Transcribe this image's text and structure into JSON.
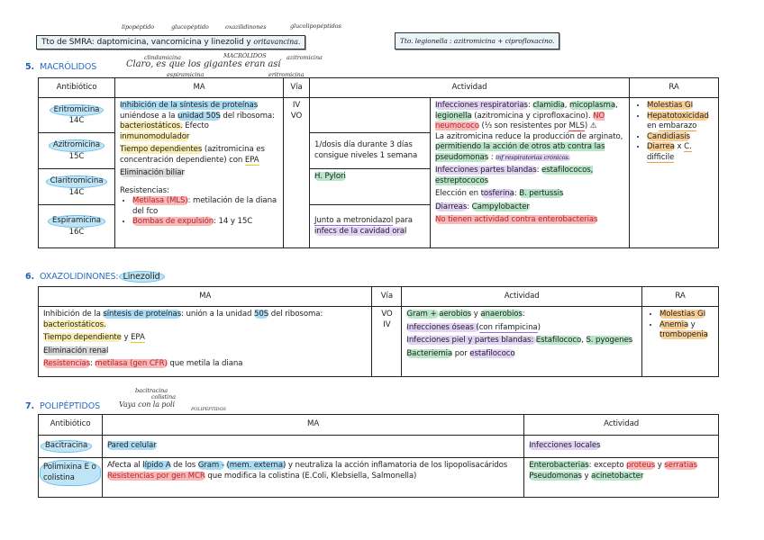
{
  "top": {
    "smra_box": "Tto de SMRA: daptomicina, vancomicina y linezolid y ",
    "smra_hand": "oritavancina.",
    "smra_notes": [
      "lipopéptido",
      "glucopéptido",
      "oxazilidinones",
      "glucolipopéptidos"
    ],
    "legionella_box": "Tto. legionella : azitromicina + ciprofloxacino."
  },
  "macrolidos": {
    "number": "5.",
    "title": "MACRÓLIDOS",
    "mnemonic": "Claro, es que los gigantes eran así",
    "mnemonic_notes": [
      "clindamicina",
      "MACRÓLIDOS",
      "azitromicina",
      "espiramicina",
      "eritromicina"
    ],
    "headers": [
      "Antibiótico",
      "MA",
      "Vía",
      "Actividad",
      "RA"
    ],
    "antibiotics": [
      {
        "name": "Eritromicina",
        "carbons": "14C"
      },
      {
        "name": "Azitromicina",
        "carbons": "15C"
      },
      {
        "name": "Claritromicina",
        "carbons": "14C"
      },
      {
        "name": "Espiramicina",
        "carbons": "16C"
      }
    ],
    "ma": [
      [
        [
          "Inhibición de la síntesis de proteínas",
          "b"
        ],
        [
          " uniéndose a la "
        ],
        [
          "unidad 50S",
          "b"
        ],
        [
          " del ribosoma: "
        ],
        [
          "bacteriostáticos.",
          "y"
        ],
        [
          " Efecto "
        ],
        [
          "inmunomodulador",
          "y"
        ]
      ],
      [
        [
          "Tiempo dependientes",
          "y"
        ],
        [
          " (azitromicina es concentración dependiente) con "
        ],
        [
          "EPA",
          "uy"
        ]
      ],
      [
        [
          "Eliminación biliar",
          "g"
        ]
      ]
    ],
    "resistencias_label": "Resistencias:",
    "resistencias": [
      [
        [
          "Metilasa (MLS)",
          "r"
        ],
        [
          ": metilación de la diana del fco"
        ]
      ],
      [
        [
          "Bombas de expulsión",
          "r"
        ],
        [
          ": 14 y 15C"
        ]
      ]
    ],
    "via": [
      "IV",
      "VO"
    ],
    "notes": [
      [
        [
          "1/dosis día durante 3 días consigue niveles 1 semana"
        ]
      ],
      [
        [
          "H. Pylori",
          "gr"
        ]
      ],
      [
        [
          "Junto a metronidazol",
          "up"
        ],
        [
          " para "
        ],
        [
          "infecs de la cavidad oral",
          "p"
        ]
      ]
    ],
    "actividad": [
      [
        [
          "Infecciones respiratorias",
          "p"
        ],
        [
          ": "
        ],
        [
          "clamidia",
          "gr"
        ],
        [
          ", "
        ],
        [
          "micoplasma",
          "gr"
        ],
        [
          ", "
        ],
        [
          "legionella",
          "gr"
        ],
        [
          " (azitromicina y ciprofloxacino). "
        ],
        [
          "NO neumococo",
          "r"
        ],
        [
          " (⅓ son resistentes por "
        ],
        [
          "MLS",
          "ur"
        ],
        [
          ") ⚠"
        ]
      ],
      [
        [
          "La azitromicina reduce la producción de arginato, "
        ],
        [
          "permitiendo la acción de otros atb contra las pseudomonas",
          "gr"
        ],
        [
          " : "
        ],
        [
          "inf respiratorias crónicos.",
          "p hwi"
        ]
      ],
      [
        [
          "Infecciones partes blandas",
          "p"
        ],
        [
          ": "
        ],
        [
          "estafilococos, estreptococos",
          "gr"
        ]
      ],
      [
        [
          "Elección en "
        ],
        [
          "tosferina",
          "p"
        ],
        [
          ": "
        ],
        [
          "B. pertussis",
          "gr"
        ]
      ],
      [
        [
          "Diarreas",
          "p"
        ],
        [
          ": "
        ],
        [
          "Campylobacter",
          "gr"
        ]
      ],
      [
        [
          "No tienen actividad contra enterobacterias",
          "r"
        ]
      ]
    ],
    "ra": [
      [
        [
          "Molestias GI",
          "o"
        ]
      ],
      [
        [
          "Hepatotoxicidad",
          "o"
        ],
        [
          " en "
        ],
        [
          "embarazo",
          "uo"
        ]
      ],
      [
        [
          "Candidiasis",
          "o"
        ]
      ],
      [
        [
          "Diarrea",
          "o"
        ],
        [
          " x "
        ],
        [
          "C.",
          "uo"
        ],
        [
          " "
        ],
        [
          "difficile",
          "uo"
        ]
      ]
    ]
  },
  "oxazolidinones": {
    "number": "6.",
    "title": "OXAZOLIDINONES:",
    "drug": "Linezolid",
    "headers": [
      "MA",
      "Vía",
      "Actividad",
      "RA"
    ],
    "ma": [
      [
        [
          "Inhibición de la "
        ],
        [
          "síntesis de proteínas",
          "b"
        ],
        [
          ": unión a la unidad "
        ],
        [
          "50S",
          "b"
        ],
        [
          " del ribosoma: "
        ],
        [
          "bacteriostáticos.",
          "y"
        ]
      ],
      [
        [
          "Tiempo dependiente",
          "y"
        ],
        [
          " y "
        ],
        [
          "EPA",
          "uy"
        ]
      ],
      [
        [
          "Eliminación renal",
          "g"
        ]
      ],
      [
        [
          "Resistencias",
          "r"
        ],
        [
          ": "
        ],
        [
          "metilasa (gen CFR)",
          "r"
        ],
        [
          " que metila la diana"
        ]
      ]
    ],
    "via": [
      "VO",
      "IV"
    ],
    "actividad": [
      [
        [
          "Gram + ",
          "gr"
        ],
        [
          "aerobios",
          "gr"
        ],
        [
          " y "
        ],
        [
          "anaerobios",
          "gr"
        ],
        [
          ":"
        ]
      ],
      [
        [
          "Infecciones óseas (",
          "p"
        ],
        [
          "con rifampicina",
          "up"
        ],
        [
          ")"
        ]
      ],
      [
        [
          "Infecciones piel y partes blandas: ",
          "p"
        ],
        [
          "Estafilococo",
          "gr"
        ],
        [
          ", "
        ],
        [
          "S. pyogenes",
          "gr"
        ]
      ],
      [
        [
          "Bacteriemia",
          "gr"
        ],
        [
          " por "
        ],
        [
          "estafilococo",
          "p"
        ]
      ]
    ],
    "ra": [
      [
        [
          "Molestias GI",
          "o"
        ]
      ],
      [
        [
          "Anemia",
          "o"
        ],
        [
          " y "
        ],
        [
          "trombopenia",
          "o"
        ]
      ]
    ]
  },
  "polipeptidos": {
    "number": "7.",
    "title": "POLIPÉPTIDOS",
    "mnemonic": "Vaya con la poli",
    "mnemonic_notes": [
      "bacitracina",
      "colistina",
      "POLIPÉPTIDOS"
    ],
    "headers": [
      "Antibiótico",
      "MA",
      "Actividad"
    ],
    "rows": [
      {
        "name": "Bacitracina",
        "ma": [
          [
            [
              "Pared celular",
              "b"
            ]
          ]
        ],
        "actividad": [
          [
            [
              "Infecciones locales",
              "p"
            ]
          ]
        ]
      },
      {
        "name": "Polimixina E o colistina",
        "ma": [
          [
            [
              "Afecta al "
            ],
            [
              "lípido A",
              "b"
            ],
            [
              " de los "
            ],
            [
              "Gram -",
              "b"
            ],
            [
              "  "
            ],
            [
              "(mem. externa)",
              "b"
            ],
            [
              " y neutraliza la acción inflamatoria de los lipopolisacáridos"
            ]
          ],
          [
            [
              "Resistencias por gen MCR",
              "r"
            ],
            [
              " que modifica la colistina (E.Coli, Klebsiella, Salmonella)"
            ]
          ]
        ],
        "actividad": [
          [
            [
              "Enterobacterias",
              "gr"
            ],
            [
              ": excepto "
            ],
            [
              "proteus",
              "r"
            ],
            [
              " y "
            ],
            [
              "serratias",
              "r"
            ]
          ],
          [
            [
              "Pseudomonas",
              "gr"
            ],
            [
              " y "
            ],
            [
              "acinetobacter",
              "gr"
            ]
          ]
        ]
      }
    ]
  }
}
